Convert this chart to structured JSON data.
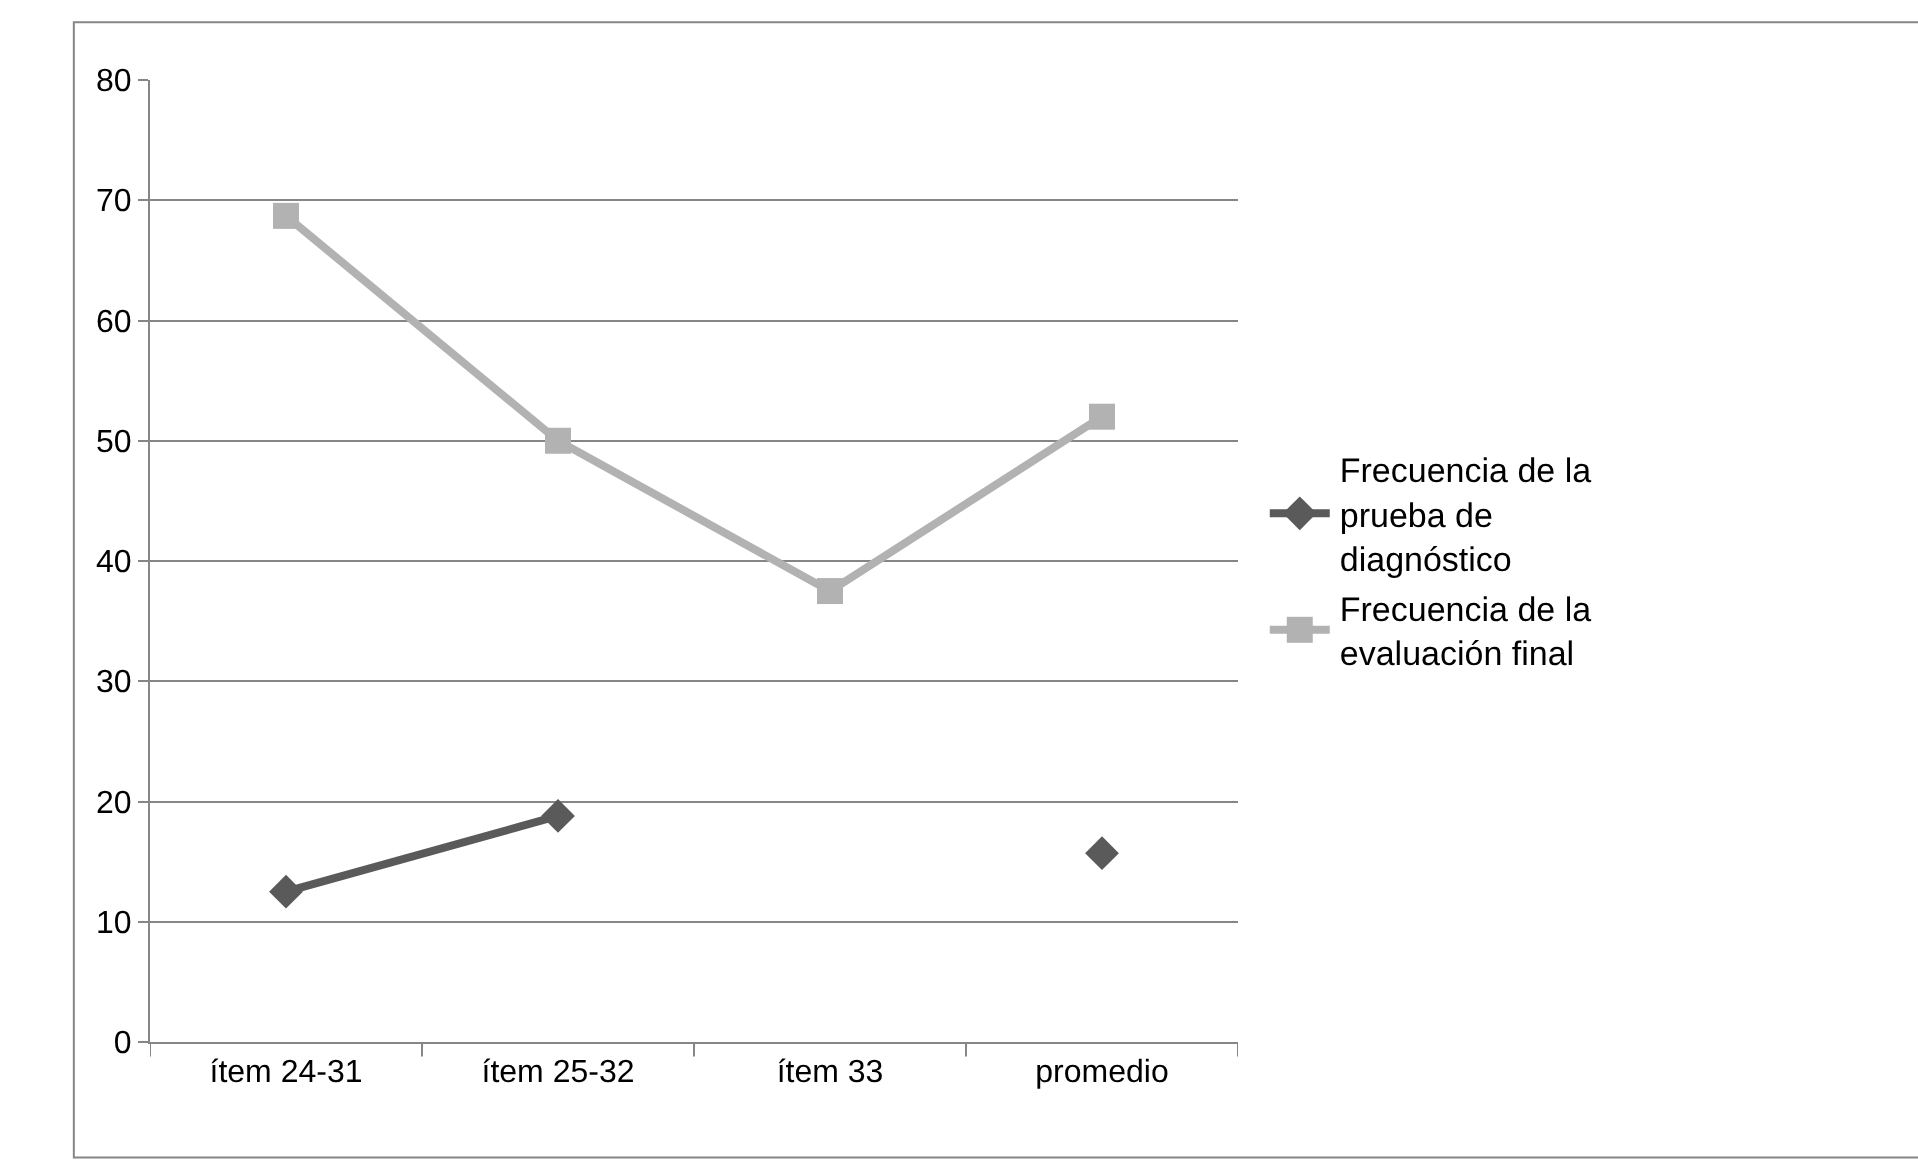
{
  "chart_data": {
    "type": "line",
    "categories": [
      "ítem 24-31",
      "ítem 25-32",
      "ítem 33",
      "promedio"
    ],
    "series": [
      {
        "name": "Frecuencia de la prueba de diagnóstico",
        "color": "#5a5a5a",
        "marker": "diamond",
        "values": [
          12.5,
          18.8,
          null,
          15.7
        ]
      },
      {
        "name": "Frecuencia de la evaluación final",
        "color": "#b2b2b2",
        "marker": "square",
        "values": [
          68.7,
          50,
          37.5,
          52
        ]
      }
    ],
    "ylim": [
      0,
      80
    ],
    "yticks": [
      0,
      10,
      20,
      30,
      40,
      50,
      60,
      70,
      80
    ],
    "grid": "y",
    "legend": "right"
  }
}
